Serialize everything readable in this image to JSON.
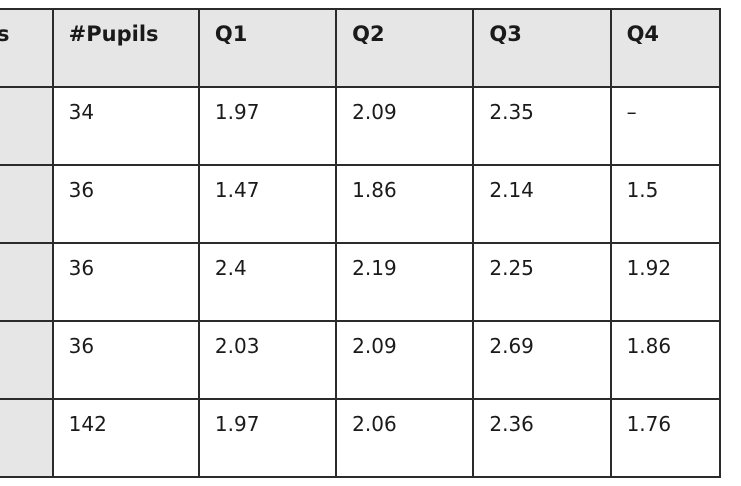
{
  "table": {
    "columns": [
      "s",
      "#Pupils",
      "Q1",
      "Q2",
      "Q3",
      "Q4"
    ],
    "rows": [
      [
        "",
        "34",
        "1.97",
        "2.09",
        "2.35",
        "–"
      ],
      [
        "",
        "36",
        "1.47",
        "1.86",
        "2.14",
        "1.5"
      ],
      [
        "",
        "36",
        "2.4",
        "2.19",
        "2.25",
        "1.92"
      ],
      [
        "",
        "36",
        "2.03",
        "2.09",
        "2.69",
        "1.86"
      ],
      [
        "",
        "142",
        "1.97",
        "2.06",
        "2.36",
        "1.76"
      ]
    ]
  },
  "colors": {
    "header_bg": "#e6e6e6",
    "border": "#2b2b2b",
    "text": "#1a1a1a"
  }
}
